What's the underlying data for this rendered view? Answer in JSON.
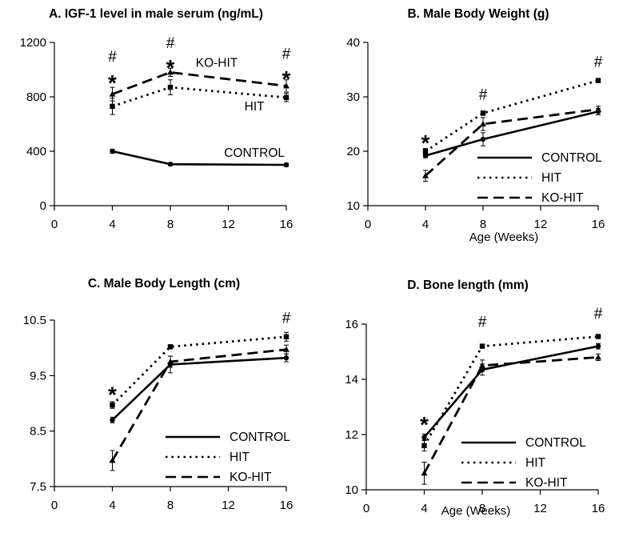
{
  "chart_data": [
    {
      "type": "line",
      "title": "A. IGF-1 level in male serum (ng/mL)",
      "xlabel": "",
      "ylabel": "",
      "x": [
        4,
        8,
        16
      ],
      "xlim": [
        0,
        16
      ],
      "xticks": [
        0,
        4,
        8,
        12,
        16
      ],
      "ylim": [
        0,
        1200
      ],
      "yticks": [
        0,
        400,
        800,
        1200
      ],
      "series": [
        {
          "name": "CONTROL",
          "style": "solid",
          "values": [
            400,
            305,
            300
          ],
          "err": [
            15,
            10,
            12
          ]
        },
        {
          "name": "HIT",
          "style": "dotted",
          "values": [
            730,
            870,
            795
          ],
          "err": [
            60,
            55,
            30
          ]
        },
        {
          "name": "KO-HIT",
          "style": "dashed",
          "values": [
            820,
            980,
            880
          ],
          "err": [
            50,
            30,
            45
          ]
        }
      ],
      "series_labels": [
        {
          "text": "KO-HIT",
          "series": 2,
          "x": 11.2,
          "y": 1020
        },
        {
          "text": "HIT",
          "series": 1,
          "x": 13.8,
          "y": 700
        },
        {
          "text": "CONTROL",
          "series": 0,
          "x": 13.8,
          "y": 360
        }
      ],
      "annotations": [
        {
          "text": "#",
          "x": 4,
          "y": 1060,
          "kind": "hash"
        },
        {
          "text": "*",
          "x": 4,
          "y": 930,
          "kind": "star"
        },
        {
          "text": "#",
          "x": 8,
          "y": 1160,
          "kind": "hash"
        },
        {
          "text": "*",
          "x": 8,
          "y": 1040,
          "kind": "star"
        },
        {
          "text": "#",
          "x": 16,
          "y": 1080,
          "kind": "hash"
        },
        {
          "text": "*",
          "x": 16,
          "y": 960,
          "kind": "star"
        }
      ]
    },
    {
      "type": "line",
      "title": "B. Male Body Weight (g)",
      "xlabel": "Age (Weeks)",
      "ylabel": "",
      "x": [
        4,
        8,
        16
      ],
      "xlim": [
        0,
        16
      ],
      "xticks": [
        0,
        4,
        8,
        12,
        16
      ],
      "ylim": [
        10,
        40
      ],
      "yticks": [
        10,
        20,
        30,
        40
      ],
      "series": [
        {
          "name": "CONTROL",
          "style": "solid",
          "values": [
            19.2,
            22.2,
            27.3
          ],
          "err": [
            0.4,
            1.2,
            0.6
          ]
        },
        {
          "name": "HIT",
          "style": "dotted",
          "values": [
            20.0,
            27.0,
            33.0
          ],
          "err": [
            0.5,
            0.4,
            0.3
          ]
        },
        {
          "name": "KO-HIT",
          "style": "dashed",
          "values": [
            15.5,
            25.0,
            27.7
          ],
          "err": [
            1.0,
            1.2,
            0.6
          ]
        }
      ],
      "legend": {
        "position": "bottom-right",
        "entries": [
          "CONTROL",
          "HIT",
          "KO-HIT"
        ]
      },
      "annotations": [
        {
          "text": "*",
          "x": 4,
          "y": 22.2,
          "kind": "star"
        },
        {
          "text": "#",
          "x": 8,
          "y": 29.5,
          "kind": "hash"
        },
        {
          "text": "#",
          "x": 16,
          "y": 35.5,
          "kind": "hash"
        }
      ]
    },
    {
      "type": "line",
      "title": "C. Male Body Length (cm)",
      "xlabel": "",
      "ylabel": "",
      "x": [
        4,
        8,
        16
      ],
      "xlim": [
        0,
        16
      ],
      "xticks": [
        0,
        4,
        8,
        12,
        16
      ],
      "ylim": [
        7.5,
        10.5
      ],
      "yticks": [
        7.5,
        8.5,
        9.5,
        10.5
      ],
      "yticklabels": [
        "7.5",
        "8.5",
        "9.5",
        "10.5"
      ],
      "series": [
        {
          "name": "CONTROL",
          "style": "solid",
          "values": [
            8.7,
            9.7,
            9.82
          ],
          "err": [
            0.05,
            0.15,
            0.07
          ]
        },
        {
          "name": "HIT",
          "style": "dotted",
          "values": [
            8.97,
            10.02,
            10.2
          ],
          "err": [
            0.06,
            0.03,
            0.08
          ]
        },
        {
          "name": "KO-HIT",
          "style": "dashed",
          "values": [
            7.97,
            9.75,
            9.97
          ],
          "err": [
            0.18,
            0.1,
            0.08
          ]
        }
      ],
      "legend": {
        "position": "bottom-right",
        "entries": [
          "CONTROL",
          "HIT",
          "KO-HIT"
        ]
      },
      "annotations": [
        {
          "text": "*",
          "x": 4,
          "y": 9.22,
          "kind": "star"
        },
        {
          "text": "#",
          "x": 16,
          "y": 10.45,
          "kind": "hash"
        }
      ]
    },
    {
      "type": "line",
      "title": "D. Bone length (mm)",
      "xlabel": "Age (Weeks)",
      "ylabel": "",
      "x": [
        4,
        8,
        16
      ],
      "xlim": [
        0,
        16
      ],
      "xticks": [
        0,
        4,
        8,
        12,
        16
      ],
      "ylim": [
        10,
        16
      ],
      "yticks": [
        10,
        12,
        14,
        16
      ],
      "series": [
        {
          "name": "CONTROL",
          "style": "solid",
          "values": [
            11.9,
            14.35,
            15.2
          ],
          "err": [
            0.12,
            0.2,
            0.1
          ]
        },
        {
          "name": "HIT",
          "style": "dotted",
          "values": [
            11.6,
            15.2,
            15.55
          ],
          "err": [
            0.2,
            0.05,
            0.05
          ]
        },
        {
          "name": "KO-HIT",
          "style": "dashed",
          "values": [
            10.6,
            14.5,
            14.8
          ],
          "err": [
            0.4,
            0.2,
            0.12
          ]
        }
      ],
      "legend": {
        "position": "bottom-right",
        "entries": [
          "CONTROL",
          "HIT",
          "KO-HIT"
        ]
      },
      "annotations": [
        {
          "text": "*",
          "x": 4,
          "y": 12.5,
          "kind": "star"
        },
        {
          "text": "#",
          "x": 8,
          "y": 15.9,
          "kind": "hash"
        },
        {
          "text": "#",
          "x": 16,
          "y": 16.2,
          "kind": "hash"
        }
      ]
    }
  ]
}
